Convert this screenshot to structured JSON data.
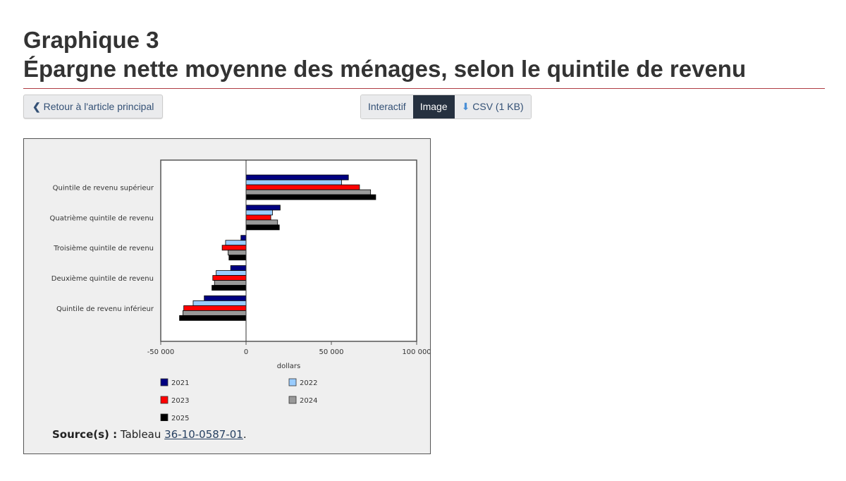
{
  "header": {
    "line1": "Graphique 3",
    "line2": "Épargne nette moyenne des ménages, selon le quintile de revenu"
  },
  "toolbar": {
    "back_label": "Retour à l'article principal",
    "interactive_label": "Interactif",
    "image_label": "Image",
    "csv_label": "CSV (1 KB)"
  },
  "source": {
    "label": "Source(s) :",
    "text": "Tableau",
    "link": "36-10-0587-01",
    "end": "."
  },
  "chart_data": {
    "type": "bar",
    "orientation": "horizontal",
    "categories": [
      "Quintile de revenu supérieur",
      "Quatrième quintile de revenu",
      "Troisième quintile de revenu",
      "Deuxième quintile de revenu",
      "Quintile de revenu inférieur"
    ],
    "series": [
      {
        "name": "2021",
        "color": "#000080",
        "values": [
          60000,
          20000,
          -3000,
          -9000,
          -24500
        ]
      },
      {
        "name": "2022",
        "color": "#99ccff",
        "values": [
          56000,
          15500,
          -12000,
          -17500,
          -31000
        ]
      },
      {
        "name": "2023",
        "color": "#ff0000",
        "values": [
          66500,
          14500,
          -14000,
          -19500,
          -36500
        ]
      },
      {
        "name": "2024",
        "color": "#999999",
        "values": [
          73000,
          18500,
          -10500,
          -18500,
          -37000
        ]
      },
      {
        "name": "2025",
        "color": "#000000",
        "values": [
          76000,
          19500,
          -10000,
          -20000,
          -39000
        ]
      }
    ],
    "xlabel": "dollars",
    "xlim": [
      -50000,
      100000
    ],
    "xticks": [
      "-50 000",
      "0",
      "50 000",
      "100 000"
    ],
    "legend": "bottom",
    "grid": false
  }
}
